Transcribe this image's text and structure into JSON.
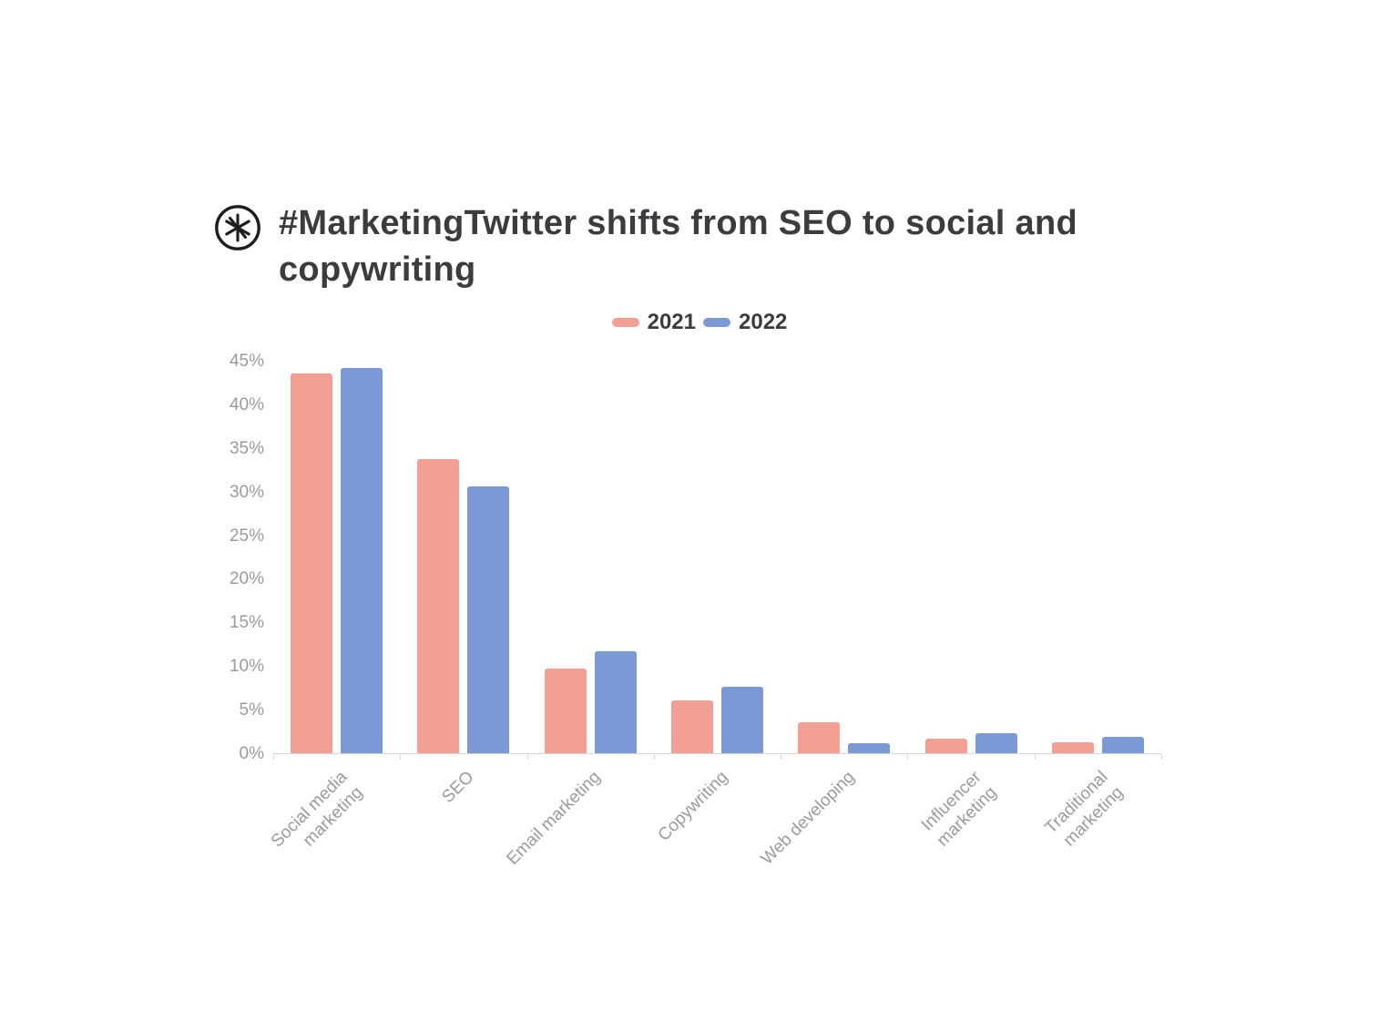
{
  "title": "#MarketingTwitter shifts from SEO to social and copywriting",
  "logo": {
    "name": "asterisk-logo",
    "color": "#1d1d1f"
  },
  "chart_data": {
    "type": "bar",
    "title": "#MarketingTwitter shifts from SEO to social and copywriting",
    "categories": [
      "Social media marketing",
      "SEO",
      "Email marketing",
      "Copywriting",
      "Web developing",
      "Influencer marketing",
      "Traditional marketing"
    ],
    "category_tick_labels": [
      "Social media\nmarketing",
      "SEO",
      "Email marketing",
      "Copywriting",
      "Web developing",
      "Influencer\nmarketing",
      "Traditional\nmarketing"
    ],
    "series": [
      {
        "name": "2021",
        "color": "#f2a094",
        "values": [
          43.5,
          33.7,
          9.7,
          6.1,
          3.6,
          1.7,
          1.3
        ]
      },
      {
        "name": "2022",
        "color": "#7b9ad5",
        "values": [
          44.2,
          30.6,
          11.7,
          7.6,
          1.2,
          2.3,
          1.9
        ]
      }
    ],
    "xlabel": "",
    "ylabel": "",
    "ylim": [
      0,
      45
    ],
    "y_tick_step": 5,
    "y_ticks": [
      "0%",
      "5%",
      "10%",
      "15%",
      "20%",
      "25%",
      "30%",
      "35%",
      "40%",
      "45%"
    ],
    "grid": false,
    "legend_position": "top",
    "axis_color": "#d8d8d8",
    "tick_label_color": "#9b9b9b"
  }
}
